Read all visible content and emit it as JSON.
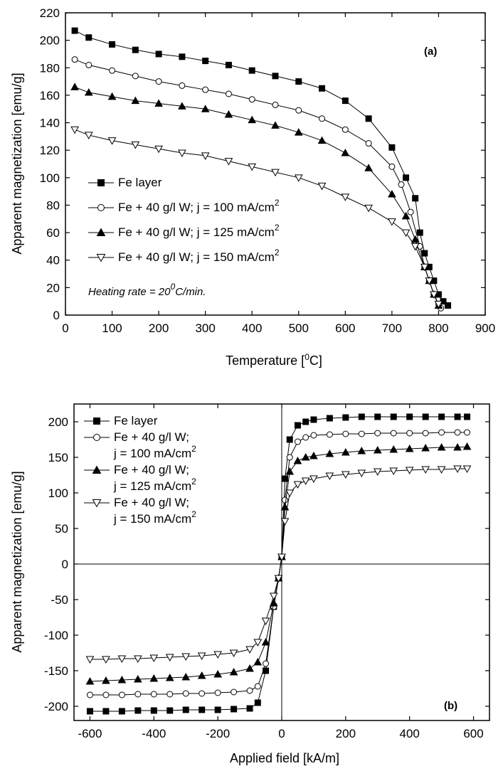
{
  "chart_data": [
    {
      "type": "scatter",
      "panel_label": "(a)",
      "xlabel": "Temperature [",
      "xlabel_sup": "0",
      "xlabel_tail": "C]",
      "ylabel": "Apparent magnetization [emu/g]",
      "xlim": [
        0,
        900
      ],
      "ylim": [
        0,
        220
      ],
      "x_ticks": [
        0,
        100,
        200,
        300,
        400,
        500,
        600,
        700,
        800,
        900
      ],
      "y_ticks": [
        0,
        20,
        40,
        60,
        80,
        100,
        120,
        140,
        160,
        180,
        200,
        220
      ],
      "annotation": {
        "text": "Heating rate = 20",
        "sup": "0",
        "tail": "C/min."
      },
      "legend_position": "left-middle",
      "series": [
        {
          "name": "Fe layer",
          "marker": "square-filled",
          "x": [
            20,
            50,
            100,
            150,
            200,
            250,
            300,
            350,
            400,
            450,
            500,
            550,
            600,
            650,
            700,
            730,
            750,
            760,
            770,
            780,
            790,
            800,
            810,
            820
          ],
          "y": [
            207,
            202,
            197,
            193,
            190,
            188,
            185,
            182,
            178,
            174,
            170,
            165,
            156,
            143,
            122,
            100,
            85,
            60,
            45,
            35,
            25,
            15,
            10,
            7
          ]
        },
        {
          "name": "Fe + 40 g/l W; j = 100 mA/cm",
          "sup": "2",
          "marker": "circle-open",
          "x": [
            20,
            50,
            100,
            150,
            200,
            250,
            300,
            350,
            400,
            450,
            500,
            550,
            600,
            650,
            700,
            720,
            740,
            760,
            770,
            780,
            790,
            800,
            805
          ],
          "y": [
            186,
            182,
            178,
            174,
            170,
            167,
            164,
            161,
            157,
            153,
            149,
            143,
            135,
            125,
            108,
            95,
            75,
            50,
            35,
            25,
            15,
            8,
            5
          ]
        },
        {
          "name": "Fe + 40 g/l W; j = 125 mA/cm",
          "sup": "2",
          "marker": "triangle-up-filled",
          "x": [
            20,
            50,
            100,
            150,
            200,
            250,
            300,
            350,
            400,
            450,
            500,
            550,
            600,
            650,
            700,
            730,
            750,
            770,
            780,
            790,
            800
          ],
          "y": [
            166,
            162,
            159,
            156,
            154,
            152,
            150,
            146,
            142,
            138,
            133,
            127,
            118,
            107,
            88,
            72,
            55,
            35,
            25,
            15,
            7
          ]
        },
        {
          "name": "Fe + 40 g/l W; j = 150 mA/cm",
          "sup": "2",
          "marker": "triangle-down-open",
          "x": [
            20,
            50,
            100,
            150,
            200,
            250,
            300,
            350,
            400,
            450,
            500,
            550,
            600,
            650,
            700,
            730,
            750,
            770,
            780,
            790,
            800
          ],
          "y": [
            135,
            131,
            127,
            124,
            121,
            118,
            116,
            112,
            108,
            104,
            100,
            94,
            86,
            78,
            68,
            60,
            50,
            35,
            25,
            15,
            8
          ]
        }
      ]
    },
    {
      "type": "scatter",
      "panel_label": "(b)",
      "xlabel": "Applied field [kA/m]",
      "ylabel": "Apparent magnetization [emu/g]",
      "xlim": [
        -650,
        650
      ],
      "ylim": [
        -220,
        225
      ],
      "x_ticks": [
        -600,
        -400,
        -200,
        0,
        200,
        400,
        600
      ],
      "y_ticks": [
        -200,
        -150,
        -100,
        -50,
        0,
        50,
        100,
        150,
        200
      ],
      "legend_position": "top-left",
      "series": [
        {
          "name": "Fe layer",
          "marker": "square-filled",
          "x": [
            -600,
            -550,
            -500,
            -450,
            -400,
            -350,
            -300,
            -250,
            -200,
            -150,
            -100,
            -75,
            -50,
            -25,
            -10,
            0,
            10,
            25,
            50,
            75,
            100,
            150,
            200,
            250,
            300,
            350,
            400,
            450,
            500,
            550,
            580
          ],
          "y": [
            -207,
            -207,
            -207,
            -206,
            -206,
            -206,
            -205,
            -205,
            -205,
            -204,
            -203,
            -195,
            -150,
            -60,
            -20,
            10,
            120,
            175,
            195,
            200,
            203,
            205,
            206,
            207,
            207,
            207,
            207,
            207,
            207,
            207,
            207
          ]
        },
        {
          "name": "Fe + 40 g/l W;",
          "name_line2": "j = 100 mA/cm",
          "sup": "2",
          "marker": "circle-open",
          "x": [
            -600,
            -550,
            -500,
            -450,
            -400,
            -350,
            -300,
            -250,
            -200,
            -150,
            -100,
            -75,
            -50,
            -25,
            -10,
            0,
            10,
            25,
            50,
            75,
            100,
            150,
            200,
            250,
            300,
            350,
            400,
            450,
            500,
            550,
            580
          ],
          "y": [
            -184,
            -184,
            -184,
            -183,
            -183,
            -183,
            -182,
            -182,
            -181,
            -180,
            -178,
            -172,
            -140,
            -60,
            -20,
            10,
            90,
            150,
            172,
            178,
            181,
            182,
            183,
            183,
            184,
            184,
            184,
            184,
            185,
            185,
            185
          ]
        },
        {
          "name": "Fe + 40 g/l W;",
          "name_line2": "j = 125 mA/cm",
          "sup": "2",
          "marker": "triangle-up-filled",
          "x": [
            -600,
            -550,
            -500,
            -450,
            -400,
            -350,
            -300,
            -250,
            -200,
            -150,
            -100,
            -75,
            -50,
            -25,
            -10,
            0,
            10,
            25,
            50,
            75,
            100,
            150,
            200,
            250,
            300,
            350,
            400,
            450,
            500,
            550,
            580
          ],
          "y": [
            -165,
            -164,
            -163,
            -162,
            -161,
            -160,
            -159,
            -157,
            -155,
            -152,
            -147,
            -138,
            -110,
            -55,
            -20,
            10,
            80,
            130,
            145,
            150,
            152,
            155,
            157,
            159,
            160,
            161,
            162,
            163,
            164,
            164,
            165
          ]
        },
        {
          "name": "Fe + 40 g/l W;",
          "name_line2": "j = 150 mA/cm",
          "sup": "2",
          "marker": "triangle-down-open",
          "x": [
            -600,
            -550,
            -500,
            -450,
            -400,
            -350,
            -300,
            -250,
            -200,
            -150,
            -100,
            -75,
            -50,
            -25,
            -10,
            0,
            10,
            25,
            50,
            75,
            100,
            150,
            200,
            250,
            300,
            350,
            400,
            450,
            500,
            550,
            580
          ],
          "y": [
            -134,
            -134,
            -133,
            -133,
            -132,
            -131,
            -130,
            -129,
            -127,
            -125,
            -120,
            -110,
            -80,
            -45,
            -20,
            10,
            60,
            100,
            112,
            117,
            120,
            124,
            126,
            128,
            130,
            131,
            132,
            133,
            133,
            134,
            134
          ]
        }
      ]
    }
  ]
}
